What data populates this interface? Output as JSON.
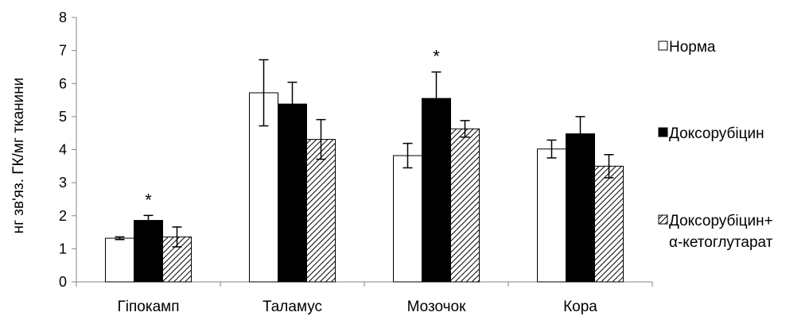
{
  "chart_data": {
    "type": "bar",
    "ylabel": "нг зв'яз. ГК/мг тканини",
    "ylim": [
      0,
      8
    ],
    "yticks": [
      0,
      1,
      2,
      3,
      4,
      5,
      6,
      7,
      8
    ],
    "grid": false,
    "legend_position": "right",
    "categories": [
      "Гіпокамп",
      "Таламус",
      "Мозочок",
      "Кора"
    ],
    "series": [
      {
        "name": "Норма",
        "fill": "white",
        "color": "#ffffff",
        "values": [
          1.32,
          5.72,
          3.82,
          4.02
        ],
        "errors": [
          0.04,
          1.0,
          0.37,
          0.27
        ],
        "significance": [
          false,
          false,
          false,
          false
        ]
      },
      {
        "name": "Доксорубіцин",
        "fill": "solid",
        "color": "#000000",
        "values": [
          1.86,
          5.38,
          5.55,
          4.48
        ],
        "errors": [
          0.15,
          0.66,
          0.8,
          0.52
        ],
        "significance": [
          true,
          false,
          true,
          false
        ]
      },
      {
        "name": "Доксорубіцин+ α-кетоглутарат",
        "name_lines": [
          "Доксорубіцин+",
          "α-кетоглутарат"
        ],
        "fill": "hatch",
        "color": "#000000",
        "values": [
          1.36,
          4.31,
          4.63,
          3.5
        ],
        "errors": [
          0.3,
          0.6,
          0.25,
          0.35
        ],
        "significance": [
          false,
          false,
          false,
          false
        ]
      }
    ],
    "significance_mark": "*"
  }
}
